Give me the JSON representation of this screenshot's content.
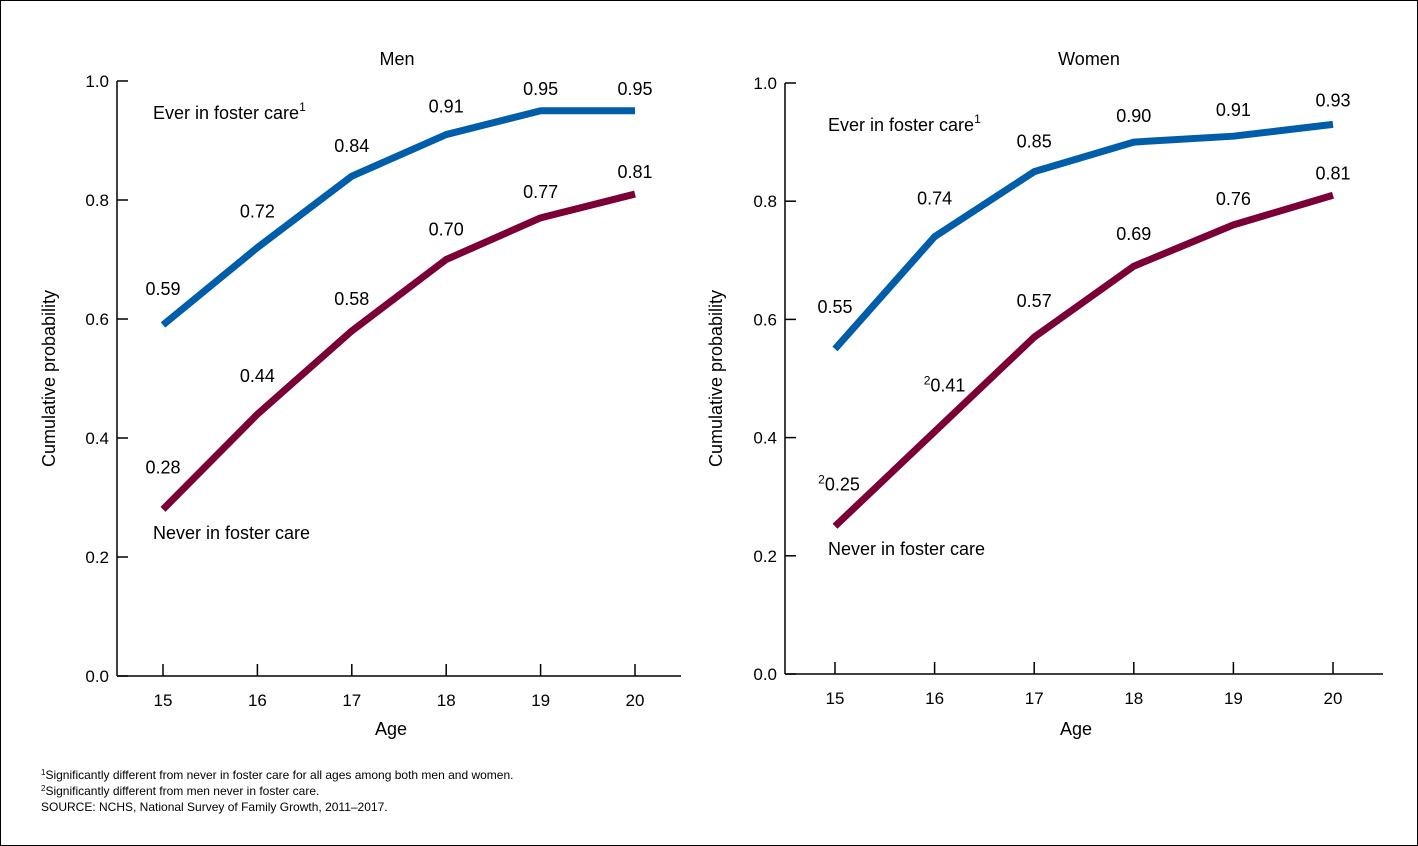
{
  "chart_data": [
    {
      "type": "line",
      "title": "Men",
      "xlabel": "Age",
      "ylabel": "Cumulative probability",
      "x": [
        15,
        16,
        17,
        18,
        19,
        20
      ],
      "ylim": [
        0,
        1
      ],
      "yticks": [
        "0.0",
        "0.2",
        "0.4",
        "0.6",
        "0.8",
        "1.0"
      ],
      "xticks": [
        "15",
        "16",
        "17",
        "18",
        "19",
        "20"
      ],
      "series": [
        {
          "name": "Ever in foster care",
          "name_sup": "1",
          "color": "#005daa",
          "values": [
            0.59,
            0.72,
            0.84,
            0.91,
            0.95,
            0.95
          ],
          "labels": [
            "0.59",
            "0.72",
            "0.84",
            "0.91",
            "0.95",
            "0.95"
          ],
          "label_sups": [
            "",
            "",
            "",
            "",
            "",
            ""
          ]
        },
        {
          "name": "Never in foster care",
          "name_sup": "",
          "color": "#7b0036",
          "values": [
            0.28,
            0.44,
            0.58,
            0.7,
            0.77,
            0.81
          ],
          "labels": [
            "0.28",
            "0.44",
            "0.58",
            "0.70",
            "0.77",
            "0.81"
          ],
          "label_sups": [
            "",
            "",
            "",
            "",
            "",
            ""
          ]
        }
      ]
    },
    {
      "type": "line",
      "title": "Women",
      "xlabel": "Age",
      "ylabel": "Cumulative probability",
      "x": [
        15,
        16,
        17,
        18,
        19,
        20
      ],
      "ylim": [
        0,
        1
      ],
      "yticks": [
        "0.0",
        "0.2",
        "0.4",
        "0.6",
        "0.8",
        "1.0"
      ],
      "xticks": [
        "15",
        "16",
        "17",
        "18",
        "19",
        "20"
      ],
      "series": [
        {
          "name": "Ever in foster care",
          "name_sup": "1",
          "color": "#005daa",
          "values": [
            0.55,
            0.74,
            0.85,
            0.9,
            0.91,
            0.93
          ],
          "labels": [
            "0.55",
            "0.74",
            "0.85",
            "0.90",
            "0.91",
            "0.93"
          ],
          "label_sups": [
            "",
            "",
            "",
            "",
            "",
            ""
          ]
        },
        {
          "name": "Never in foster care",
          "name_sup": "",
          "color": "#7b0036",
          "values": [
            0.25,
            0.41,
            0.57,
            0.69,
            0.76,
            0.81
          ],
          "labels": [
            "0.25",
            "0.41",
            "0.57",
            "0.69",
            "0.76",
            "0.81"
          ],
          "label_sups": [
            "2",
            "2",
            "",
            "",
            "",
            ""
          ]
        }
      ]
    }
  ],
  "footnotes": [
    {
      "sup": "1",
      "text": "Significantly different from never in foster care for all ages among both men and women."
    },
    {
      "sup": "2",
      "text": "Significantly different from men never in foster care."
    },
    {
      "sup": "",
      "text": "SOURCE: NCHS, National Survey of Family Growth, 2011–2017."
    }
  ]
}
